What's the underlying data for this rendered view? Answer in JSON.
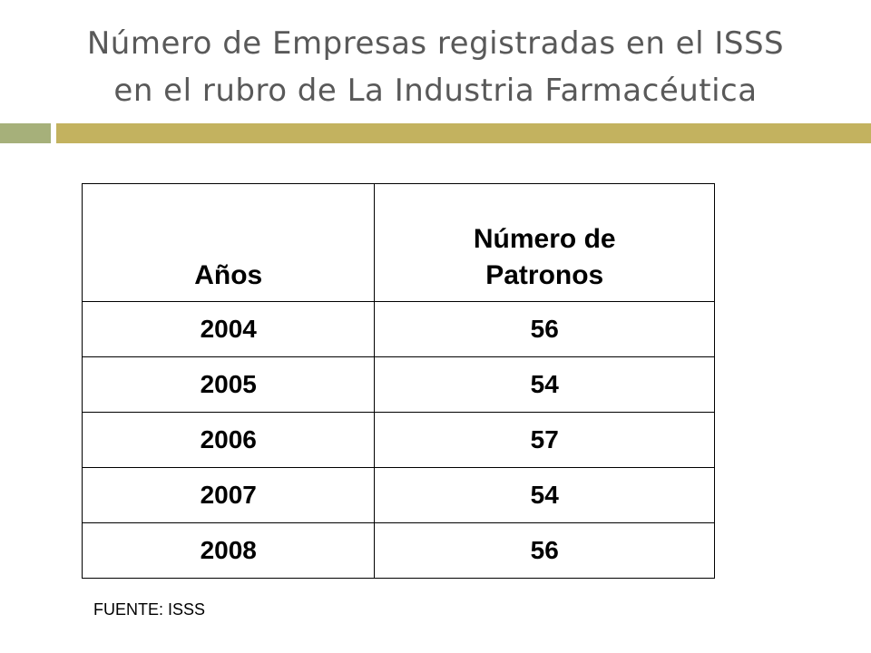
{
  "slide": {
    "title_line1": "Número de Empresas registradas en el ISSS",
    "title_line2": "en el rubro de La Industria Farmacéutica",
    "accent_colors": {
      "bar_left": "#a6b07a",
      "bar_right": "#c3b25f",
      "title_text": "#595959"
    }
  },
  "table": {
    "headers": {
      "years": "Años",
      "count_line1": "Número de",
      "count_line2": "Patronos"
    },
    "rows": [
      {
        "year": "2004",
        "count": "56"
      },
      {
        "year": "2005",
        "count": "54"
      },
      {
        "year": "2006",
        "count": "57"
      },
      {
        "year": "2007",
        "count": "54"
      },
      {
        "year": "2008",
        "count": "56"
      }
    ]
  },
  "source": "FUENTE: ISSS"
}
